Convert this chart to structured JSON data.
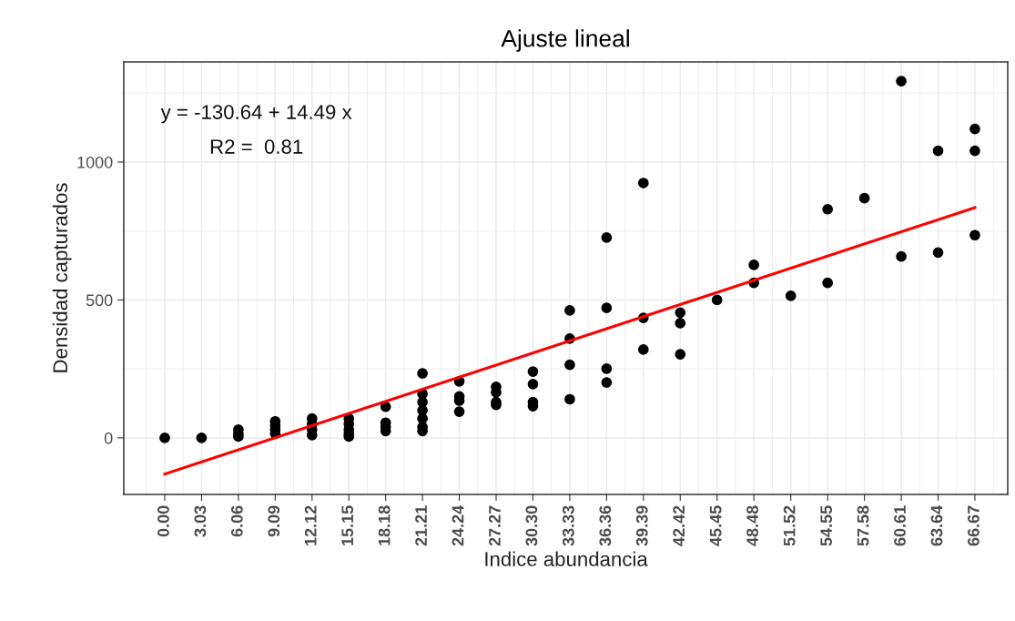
{
  "chart_data": {
    "type": "scatter",
    "title": "Ajuste lineal",
    "xlabel": "Indice abundancia",
    "ylabel": "Densidad capturados",
    "annotations": [
      "y = -130.64 + 14.49 x",
      "R2 =  0.81"
    ],
    "xlim": [
      -3.37,
      69.37
    ],
    "ylim": [
      -205,
      1363
    ],
    "xticks": [
      {
        "value": 0,
        "label": "0.00"
      },
      3.03,
      6.06,
      9.09,
      12.12,
      15.15,
      18.18,
      21.21,
      24.24,
      27.27,
      {
        "value": 30.3,
        "label": "30.30"
      },
      33.33,
      36.36,
      39.39,
      42.42,
      45.45,
      48.48,
      51.52,
      54.55,
      57.58,
      60.61,
      63.64,
      66.67
    ],
    "yticks": [
      0,
      500,
      1000
    ],
    "grid": true,
    "series": [
      {
        "color": "#000000",
        "marker": "circle",
        "x": [
          0,
          3.03,
          6.06,
          6.06,
          6.06,
          9.09,
          9.09,
          9.09,
          9.09,
          12.12,
          12.12,
          12.12,
          12.12,
          15.15,
          15.15,
          15.15,
          15.15,
          15.15,
          18.18,
          18.18,
          18.18,
          18.18,
          21.21,
          21.21,
          21.21,
          21.21,
          21.21,
          21.21,
          21.21,
          24.24,
          24.24,
          24.24,
          24.24,
          27.27,
          27.27,
          27.27,
          27.27,
          30.3,
          30.3,
          30.3,
          30.3,
          33.33,
          33.33,
          33.33,
          33.33,
          36.36,
          36.36,
          36.36,
          36.36,
          39.39,
          39.39,
          39.39,
          42.42,
          42.42,
          42.42,
          45.45,
          48.48,
          48.48,
          51.52,
          54.55,
          54.55,
          57.58,
          60.61,
          60.61,
          63.64,
          63.64,
          66.67,
          66.67,
          66.67
        ],
        "values": [
          0,
          0,
          30,
          15,
          5,
          60,
          45,
          30,
          15,
          70,
          50,
          30,
          10,
          70,
          50,
          30,
          15,
          5,
          113,
          55,
          40,
          25,
          234,
          160,
          130,
          100,
          70,
          40,
          25,
          205,
          150,
          135,
          95,
          185,
          165,
          130,
          120,
          240,
          195,
          130,
          115,
          462,
          360,
          265,
          140,
          726,
          471,
          251,
          201,
          924,
          435,
          320,
          454,
          416,
          303,
          500,
          627,
          562,
          515,
          829,
          562,
          869,
          1293,
          658,
          1041,
          672,
          1120,
          1041,
          735
        ]
      },
      {
        "type": "line",
        "color": "#ff0000",
        "x": [
          0,
          66.67
        ],
        "values": [
          -131,
          835
        ]
      }
    ]
  }
}
